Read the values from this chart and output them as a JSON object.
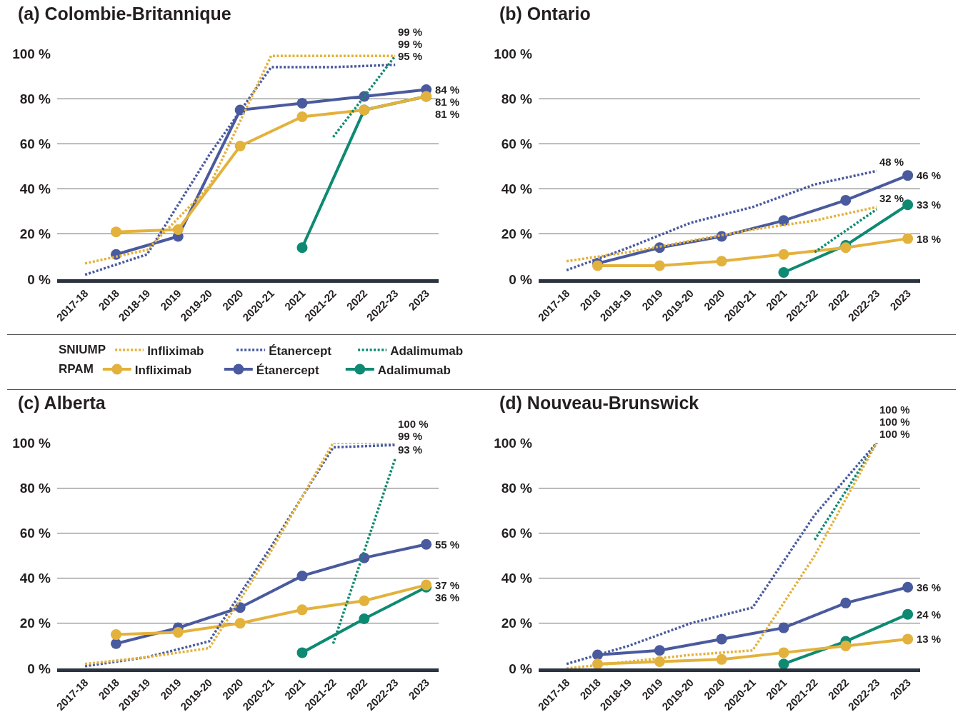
{
  "chart_data": [
    {
      "type": "line",
      "title": "(a) Colombie-Britannique",
      "categories": [
        "2017-18",
        "2018",
        "2018-19",
        "2019",
        "2019-20",
        "2020",
        "2020-21",
        "2021",
        "2021-22",
        "2022",
        "2022-23",
        "2023"
      ],
      "ylim": [
        0,
        100
      ],
      "yticks": [
        {
          "value": 0,
          "label": "0 %"
        },
        {
          "value": 20,
          "label": "20 %"
        },
        {
          "value": 40,
          "label": "40 %"
        },
        {
          "value": 60,
          "label": "60 %"
        },
        {
          "value": 80,
          "label": "80 %"
        },
        {
          "value": 100,
          "label": "100 %"
        }
      ],
      "grid": "y",
      "legend": "bottom",
      "annotations": [
        "SNIUMP",
        "RPAM"
      ],
      "series": [
        {
          "name": "Infliximab",
          "color": "#e3b23c",
          "line_style": "dotted",
          "marker": "none",
          "values": [
            7,
            null,
            13,
            null,
            41,
            null,
            99,
            null,
            99,
            null,
            99,
            null
          ],
          "value_labels": [
            null,
            null,
            null,
            null,
            null,
            null,
            null,
            null,
            null,
            null,
            "99 %",
            null
          ]
        },
        {
          "name": "Étanercept",
          "color": "#4a5a9e",
          "line_style": "dotted",
          "marker": "none",
          "values": [
            2,
            null,
            11,
            null,
            55,
            null,
            94,
            null,
            94,
            null,
            95,
            null
          ],
          "value_labels": [
            null,
            null,
            null,
            null,
            null,
            null,
            null,
            null,
            null,
            null,
            "95 %",
            null
          ]
        },
        {
          "name": "Adalimumab",
          "color": "#0e8a72",
          "line_style": "dotted",
          "marker": "none",
          "values": [
            null,
            null,
            null,
            null,
            null,
            null,
            null,
            null,
            63,
            null,
            99,
            null
          ],
          "value_labels": [
            null,
            null,
            null,
            null,
            null,
            null,
            null,
            null,
            null,
            null,
            "99 %",
            null
          ]
        },
        {
          "name": "Infliximab",
          "color": "#e3b23c",
          "line_style": "solid",
          "marker": "circle",
          "values": [
            null,
            21,
            null,
            22,
            null,
            59,
            null,
            72,
            null,
            75,
            null,
            81
          ],
          "value_labels": [
            null,
            null,
            null,
            null,
            null,
            null,
            null,
            null,
            null,
            null,
            null,
            "81 %"
          ]
        },
        {
          "name": "Étanercept",
          "color": "#4a5a9e",
          "line_style": "solid",
          "marker": "circle",
          "values": [
            null,
            11,
            null,
            19,
            null,
            75,
            null,
            78,
            null,
            81,
            null,
            84
          ],
          "value_labels": [
            null,
            null,
            null,
            null,
            null,
            null,
            null,
            null,
            null,
            null,
            null,
            "84 %"
          ]
        },
        {
          "name": "Adalimumab",
          "color": "#0e8a72",
          "line_style": "solid",
          "marker": "circle",
          "values": [
            null,
            null,
            null,
            null,
            null,
            null,
            null,
            14,
            null,
            75,
            null,
            81
          ],
          "value_labels": [
            null,
            null,
            null,
            null,
            null,
            null,
            null,
            null,
            null,
            null,
            null,
            "81 %"
          ]
        }
      ]
    },
    {
      "type": "line",
      "title": "(b) Ontario",
      "categories": [
        "2017-18",
        "2018",
        "2018-19",
        "2019",
        "2019-20",
        "2020",
        "2020-21",
        "2021",
        "2021-22",
        "2022",
        "2022-23",
        "2023"
      ],
      "ylim": [
        0,
        100
      ],
      "yticks": [
        {
          "value": 0,
          "label": "0 %"
        },
        {
          "value": 20,
          "label": "20 %"
        },
        {
          "value": 40,
          "label": "40 %"
        },
        {
          "value": 60,
          "label": "60 %"
        },
        {
          "value": 80,
          "label": "80 %"
        },
        {
          "value": 100,
          "label": "100 %"
        }
      ],
      "grid": "y",
      "series": [
        {
          "color": "#e3b23c",
          "line_style": "dotted",
          "marker": "none",
          "values": [
            8,
            null,
            12,
            null,
            17,
            null,
            22,
            null,
            26,
            null,
            32,
            null
          ],
          "value_labels": [
            null,
            null,
            null,
            null,
            null,
            null,
            null,
            null,
            null,
            null,
            "32 %",
            null
          ]
        },
        {
          "color": "#4a5a9e",
          "line_style": "dotted",
          "marker": "none",
          "values": [
            4,
            null,
            14,
            null,
            25,
            null,
            32,
            null,
            42,
            null,
            48,
            null
          ],
          "value_labels": [
            null,
            null,
            null,
            null,
            null,
            null,
            null,
            null,
            null,
            null,
            "48 %",
            null
          ]
        },
        {
          "color": "#0e8a72",
          "line_style": "dotted",
          "marker": "none",
          "values": [
            null,
            null,
            null,
            null,
            null,
            null,
            null,
            null,
            12,
            null,
            31,
            null
          ]
        },
        {
          "color": "#e3b23c",
          "line_style": "solid",
          "marker": "circle",
          "values": [
            null,
            6,
            null,
            6,
            null,
            8,
            null,
            11,
            null,
            14,
            null,
            18
          ],
          "value_labels": [
            null,
            null,
            null,
            null,
            null,
            null,
            null,
            null,
            null,
            null,
            null,
            "18 %"
          ]
        },
        {
          "color": "#4a5a9e",
          "line_style": "solid",
          "marker": "circle",
          "values": [
            null,
            7,
            null,
            14,
            null,
            19,
            null,
            26,
            null,
            35,
            null,
            46
          ],
          "value_labels": [
            null,
            null,
            null,
            null,
            null,
            null,
            null,
            null,
            null,
            null,
            null,
            "46 %"
          ]
        },
        {
          "color": "#0e8a72",
          "line_style": "solid",
          "marker": "circle",
          "values": [
            null,
            null,
            null,
            null,
            null,
            null,
            null,
            3,
            null,
            15,
            null,
            33
          ],
          "value_labels": [
            null,
            null,
            null,
            null,
            null,
            null,
            null,
            null,
            null,
            null,
            null,
            "33 %"
          ]
        }
      ]
    },
    {
      "type": "line",
      "title": "(c) Alberta",
      "categories": [
        "2017-18",
        "2018",
        "2018-19",
        "2019",
        "2019-20",
        "2020",
        "2020-21",
        "2021",
        "2021-22",
        "2022",
        "2022-23",
        "2023"
      ],
      "ylim": [
        0,
        100
      ],
      "yticks": [
        {
          "value": 0,
          "label": "0 %"
        },
        {
          "value": 20,
          "label": "20 %"
        },
        {
          "value": 40,
          "label": "40 %"
        },
        {
          "value": 60,
          "label": "60 %"
        },
        {
          "value": 80,
          "label": "80 %"
        },
        {
          "value": 100,
          "label": "100 %"
        }
      ],
      "grid": "y",
      "series": [
        {
          "color": "#e3b23c",
          "line_style": "dotted",
          "marker": "none",
          "values": [
            2,
            null,
            5,
            null,
            9,
            null,
            52,
            null,
            100,
            null,
            100,
            null
          ],
          "value_labels": [
            null,
            null,
            null,
            null,
            null,
            null,
            null,
            null,
            null,
            null,
            "100 %",
            null
          ]
        },
        {
          "color": "#4a5a9e",
          "line_style": "dotted",
          "marker": "none",
          "values": [
            1,
            null,
            5,
            null,
            12,
            null,
            54,
            null,
            98,
            null,
            99,
            null
          ],
          "value_labels": [
            null,
            null,
            null,
            null,
            null,
            null,
            null,
            null,
            null,
            null,
            "99 %",
            null
          ]
        },
        {
          "color": "#0e8a72",
          "line_style": "dotted",
          "marker": "none",
          "values": [
            null,
            null,
            null,
            null,
            null,
            null,
            null,
            null,
            11,
            null,
            93,
            null
          ],
          "value_labels": [
            null,
            null,
            null,
            null,
            null,
            null,
            null,
            null,
            null,
            null,
            "93 %",
            null
          ]
        },
        {
          "color": "#e3b23c",
          "line_style": "solid",
          "marker": "circle",
          "values": [
            null,
            15,
            null,
            16,
            null,
            20,
            null,
            26,
            null,
            30,
            null,
            37
          ],
          "value_labels": [
            null,
            null,
            null,
            null,
            null,
            null,
            null,
            null,
            null,
            null,
            null,
            "37 %"
          ]
        },
        {
          "color": "#4a5a9e",
          "line_style": "solid",
          "marker": "circle",
          "values": [
            null,
            11,
            null,
            18,
            null,
            27,
            null,
            41,
            null,
            49,
            null,
            55
          ],
          "value_labels": [
            null,
            null,
            null,
            null,
            null,
            null,
            null,
            null,
            null,
            null,
            null,
            "55 %"
          ]
        },
        {
          "color": "#0e8a72",
          "line_style": "solid",
          "marker": "circle",
          "values": [
            null,
            null,
            null,
            null,
            null,
            null,
            null,
            7,
            null,
            22,
            null,
            36
          ],
          "value_labels": [
            null,
            null,
            null,
            null,
            null,
            null,
            null,
            null,
            null,
            null,
            null,
            "36 %"
          ]
        }
      ]
    },
    {
      "type": "line",
      "title": "(d) Nouveau-Brunswick",
      "categories": [
        "2017-18",
        "2018",
        "2018-19",
        "2019",
        "2019-20",
        "2020",
        "2020-21",
        "2021",
        "2021-22",
        "2022",
        "2022-23",
        "2023"
      ],
      "ylim": [
        0,
        100
      ],
      "yticks": [
        {
          "value": 0,
          "label": "0 %"
        },
        {
          "value": 20,
          "label": "20 %"
        },
        {
          "value": 40,
          "label": "40 %"
        },
        {
          "value": 60,
          "label": "60 %"
        },
        {
          "value": 80,
          "label": "80 %"
        },
        {
          "value": 100,
          "label": "100 %"
        }
      ],
      "grid": "y",
      "series": [
        {
          "color": "#e3b23c",
          "line_style": "dotted",
          "marker": "none",
          "values": [
            0,
            null,
            3,
            null,
            6,
            null,
            8,
            null,
            50,
            null,
            100,
            null
          ],
          "value_labels": [
            null,
            null,
            null,
            null,
            null,
            null,
            null,
            null,
            null,
            null,
            "100 %",
            null
          ]
        },
        {
          "color": "#4a5a9e",
          "line_style": "dotted",
          "marker": "none",
          "values": [
            2,
            null,
            10,
            null,
            20,
            null,
            27,
            null,
            68,
            null,
            100,
            null
          ],
          "value_labels": [
            null,
            null,
            null,
            null,
            null,
            null,
            null,
            null,
            null,
            null,
            "100 %",
            null
          ]
        },
        {
          "color": "#0e8a72",
          "line_style": "dotted",
          "marker": "none",
          "values": [
            null,
            null,
            null,
            null,
            null,
            null,
            null,
            null,
            57,
            null,
            100,
            null
          ],
          "value_labels": [
            null,
            null,
            null,
            null,
            null,
            null,
            null,
            null,
            null,
            null,
            "100 %",
            null
          ]
        },
        {
          "color": "#e3b23c",
          "line_style": "solid",
          "marker": "circle",
          "values": [
            null,
            2,
            null,
            3,
            null,
            4,
            null,
            7,
            null,
            10,
            null,
            13
          ],
          "value_labels": [
            null,
            null,
            null,
            null,
            null,
            null,
            null,
            null,
            null,
            null,
            null,
            "13 %"
          ]
        },
        {
          "color": "#4a5a9e",
          "line_style": "solid",
          "marker": "circle",
          "values": [
            null,
            6,
            null,
            8,
            null,
            13,
            null,
            18,
            null,
            29,
            null,
            36
          ],
          "value_labels": [
            null,
            null,
            null,
            null,
            null,
            null,
            null,
            null,
            null,
            null,
            null,
            "36 %"
          ]
        },
        {
          "color": "#0e8a72",
          "line_style": "solid",
          "marker": "circle",
          "values": [
            null,
            null,
            null,
            null,
            null,
            null,
            null,
            2,
            null,
            12,
            null,
            24
          ],
          "value_labels": [
            null,
            null,
            null,
            null,
            null,
            null,
            null,
            null,
            null,
            null,
            null,
            "24 %"
          ]
        }
      ]
    }
  ]
}
